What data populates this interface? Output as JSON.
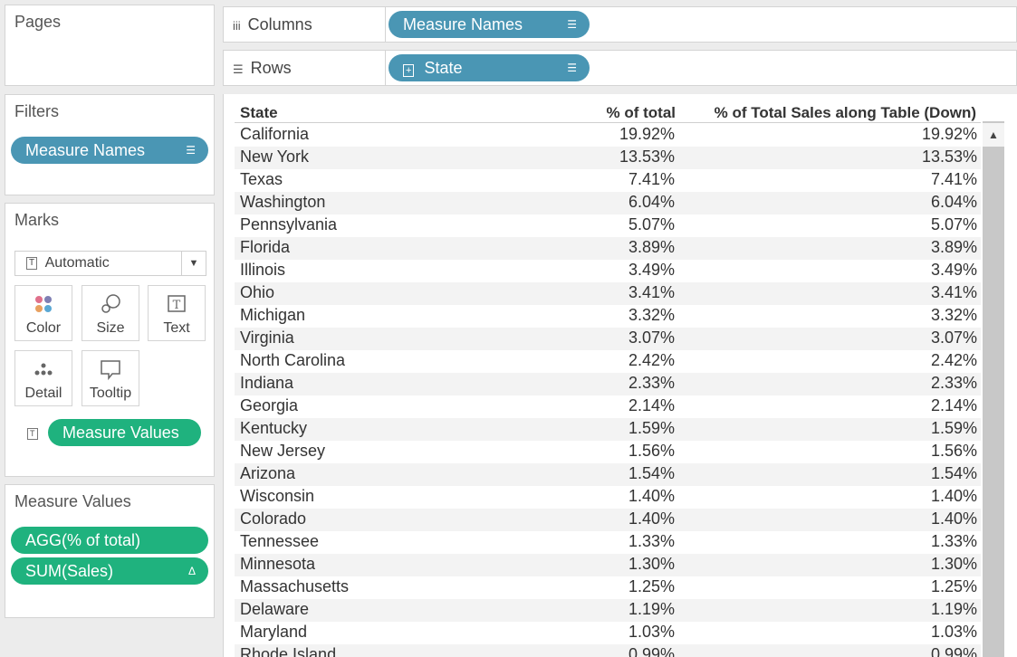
{
  "pages": {
    "title": "Pages"
  },
  "filters": {
    "title": "Filters",
    "pill": "Measure Names"
  },
  "marks": {
    "title": "Marks",
    "type_select": "Automatic",
    "buttons": {
      "color": "Color",
      "size": "Size",
      "text": "Text",
      "detail": "Detail",
      "tooltip": "Tooltip"
    },
    "pill": "Measure Values"
  },
  "measure_values": {
    "title": "Measure Values",
    "items": [
      "AGG(% of total)",
      "SUM(Sales)"
    ]
  },
  "columns": {
    "label": "Columns",
    "pill": "Measure Names"
  },
  "rows": {
    "label": "Rows",
    "pill": "State"
  },
  "table": {
    "headers": [
      "State",
      "% of total",
      "% of Total Sales along Table (Down)"
    ],
    "rows": [
      [
        "California",
        "19.92%",
        "19.92%"
      ],
      [
        "New York",
        "13.53%",
        "13.53%"
      ],
      [
        "Texas",
        "7.41%",
        "7.41%"
      ],
      [
        "Washington",
        "6.04%",
        "6.04%"
      ],
      [
        "Pennsylvania",
        "5.07%",
        "5.07%"
      ],
      [
        "Florida",
        "3.89%",
        "3.89%"
      ],
      [
        "Illinois",
        "3.49%",
        "3.49%"
      ],
      [
        "Ohio",
        "3.41%",
        "3.41%"
      ],
      [
        "Michigan",
        "3.32%",
        "3.32%"
      ],
      [
        "Virginia",
        "3.07%",
        "3.07%"
      ],
      [
        "North Carolina",
        "2.42%",
        "2.42%"
      ],
      [
        "Indiana",
        "2.33%",
        "2.33%"
      ],
      [
        "Georgia",
        "2.14%",
        "2.14%"
      ],
      [
        "Kentucky",
        "1.59%",
        "1.59%"
      ],
      [
        "New Jersey",
        "1.56%",
        "1.56%"
      ],
      [
        "Arizona",
        "1.54%",
        "1.54%"
      ],
      [
        "Wisconsin",
        "1.40%",
        "1.40%"
      ],
      [
        "Colorado",
        "1.40%",
        "1.40%"
      ],
      [
        "Tennessee",
        "1.33%",
        "1.33%"
      ],
      [
        "Minnesota",
        "1.30%",
        "1.30%"
      ],
      [
        "Massachusetts",
        "1.25%",
        "1.25%"
      ],
      [
        "Delaware",
        "1.19%",
        "1.19%"
      ],
      [
        "Maryland",
        "1.03%",
        "1.03%"
      ],
      [
        "Rhode Island",
        "0.99%",
        "0.99%"
      ]
    ]
  }
}
